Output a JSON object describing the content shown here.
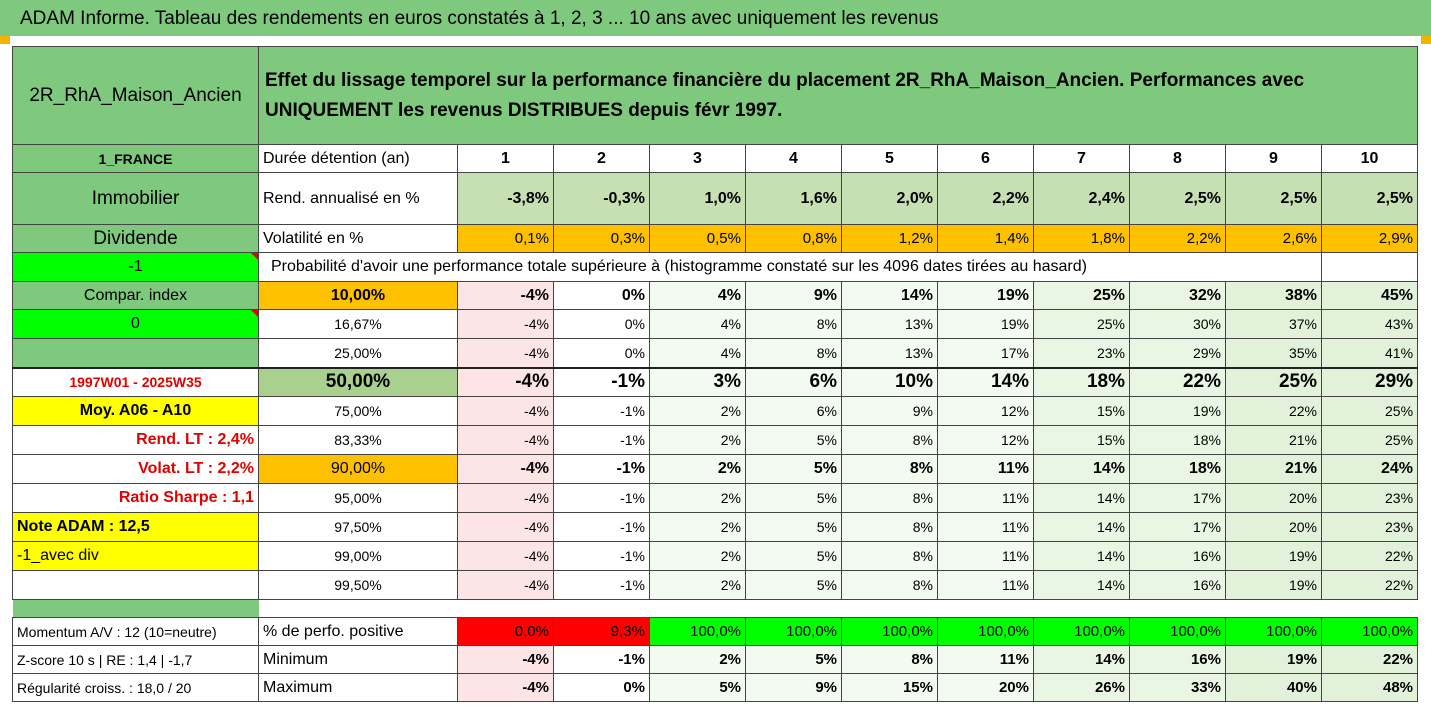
{
  "title": "ADAM Informe. Tableau des rendements en euros constatés à 1, 2, 3 ... 10 ans avec uniquement les revenus",
  "fund_name": "2R_RhA_Maison_Ancien",
  "description": "Effet du lissage temporel sur la performance financière du placement 2R_RhA_Maison_Ancien. Performances avec UNIQUEMENT les revenus DISTRIBUES depuis févr 1997.",
  "side": {
    "country": "1_FRANCE",
    "category": "Immobilier",
    "dividende": "Dividende",
    "minus_one": "-1",
    "compar_index": "Compar. index",
    "zero": "0",
    "period": "1997W01 - 2025W35",
    "moy": "Moy. A06 - A10",
    "rend_lt": "Rend. LT :   2,4%",
    "volat_lt": "Volat. LT :   2,2%",
    "sharpe": "Ratio Sharpe :    1,1",
    "note": "Note ADAM : 12,5",
    "avec_div": "-1_avec div"
  },
  "rows_labels": {
    "duree": "Durée détention (an)",
    "rend": "Rend. annualisé en %",
    "vol": "Volatilité en %",
    "proba": "Probabilité d'avoir une performance totale supérieure à (histogramme constaté sur les 4096 dates tirées au hasard)"
  },
  "years": [
    "1",
    "2",
    "3",
    "4",
    "5",
    "6",
    "7",
    "8",
    "9",
    "10"
  ],
  "rend": [
    "-3,8%",
    "-0,3%",
    "1,0%",
    "1,6%",
    "2,0%",
    "2,2%",
    "2,4%",
    "2,5%",
    "2,5%",
    "2,5%"
  ],
  "vol": [
    "0,1%",
    "0,3%",
    "0,5%",
    "0,8%",
    "1,2%",
    "1,4%",
    "1,8%",
    "2,2%",
    "2,6%",
    "2,9%"
  ],
  "percentiles": [
    {
      "p": "10,00%",
      "v": [
        "-4%",
        "0%",
        "4%",
        "9%",
        "14%",
        "19%",
        "25%",
        "32%",
        "38%",
        "45%"
      ]
    },
    {
      "p": "16,67%",
      "v": [
        "-4%",
        "0%",
        "4%",
        "8%",
        "13%",
        "19%",
        "25%",
        "30%",
        "37%",
        "43%"
      ]
    },
    {
      "p": "25,00%",
      "v": [
        "-4%",
        "0%",
        "4%",
        "8%",
        "13%",
        "17%",
        "23%",
        "29%",
        "35%",
        "41%"
      ]
    },
    {
      "p": "50,00%",
      "v": [
        "-4%",
        "-1%",
        "3%",
        "6%",
        "10%",
        "14%",
        "18%",
        "22%",
        "25%",
        "29%"
      ]
    },
    {
      "p": "75,00%",
      "v": [
        "-4%",
        "-1%",
        "2%",
        "6%",
        "9%",
        "12%",
        "15%",
        "19%",
        "22%",
        "25%"
      ]
    },
    {
      "p": "83,33%",
      "v": [
        "-4%",
        "-1%",
        "2%",
        "5%",
        "8%",
        "12%",
        "15%",
        "18%",
        "21%",
        "25%"
      ]
    },
    {
      "p": "90,00%",
      "v": [
        "-4%",
        "-1%",
        "2%",
        "5%",
        "8%",
        "11%",
        "14%",
        "18%",
        "21%",
        "24%"
      ]
    },
    {
      "p": "95,00%",
      "v": [
        "-4%",
        "-1%",
        "2%",
        "5%",
        "8%",
        "11%",
        "14%",
        "17%",
        "20%",
        "23%"
      ]
    },
    {
      "p": "97,50%",
      "v": [
        "-4%",
        "-1%",
        "2%",
        "5%",
        "8%",
        "11%",
        "14%",
        "17%",
        "20%",
        "23%"
      ]
    },
    {
      "p": "99,00%",
      "v": [
        "-4%",
        "-1%",
        "2%",
        "5%",
        "8%",
        "11%",
        "14%",
        "16%",
        "19%",
        "22%"
      ]
    },
    {
      "p": "99,50%",
      "v": [
        "-4%",
        "-1%",
        "2%",
        "5%",
        "8%",
        "11%",
        "14%",
        "16%",
        "19%",
        "22%"
      ]
    }
  ],
  "bottom": {
    "momentum": "Momentum A/V : 12 (10=neutre)",
    "zscore": "Z-score 10 s  | RE : 1,4 | -1,7",
    "regularite": "Régularité croiss. : 18,0 / 20",
    "pos_label": "% de perfo. positive",
    "min_label": "Minimum",
    "max_label": "Maximum",
    "pos": [
      "0,0%",
      "9,3%",
      "100,0%",
      "100,0%",
      "100,0%",
      "100,0%",
      "100,0%",
      "100,0%",
      "100,0%",
      "100,0%"
    ],
    "min": [
      "-4%",
      "-1%",
      "2%",
      "5%",
      "8%",
      "11%",
      "14%",
      "16%",
      "19%",
      "22%"
    ],
    "max": [
      "-4%",
      "0%",
      "5%",
      "9%",
      "15%",
      "20%",
      "26%",
      "33%",
      "40%",
      "48%"
    ]
  },
  "colors": {
    "header_green": "#7fc97f",
    "orange": "#ffc000",
    "bright_green": "#00ff00",
    "red": "#ff0000",
    "yellow": "#ffff00"
  }
}
